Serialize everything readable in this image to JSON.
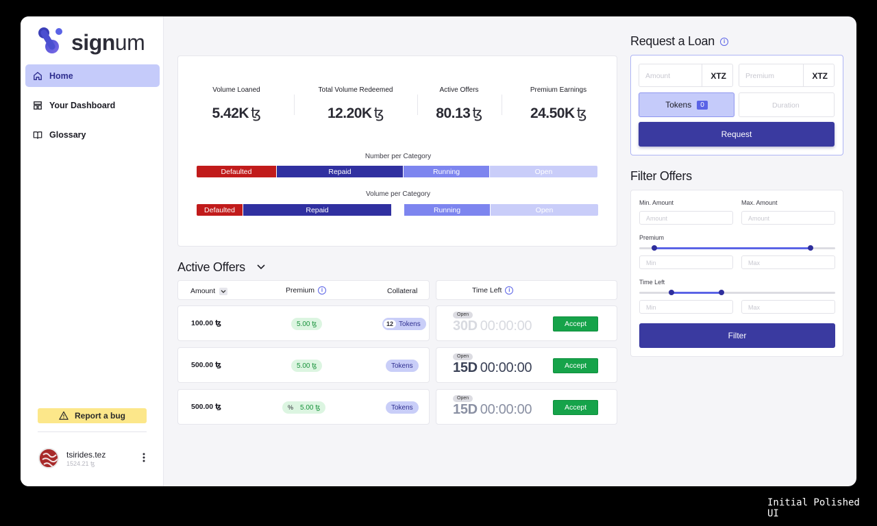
{
  "brand": {
    "name_a": "sign",
    "name_b": "um"
  },
  "sidebar": {
    "items": [
      {
        "label": "Home",
        "active": true
      },
      {
        "label": "Your Dashboard"
      },
      {
        "label": "Glossary"
      }
    ],
    "report_bug": "Report a bug",
    "user": {
      "name": "tsirides.tez",
      "balance": "1524.21 ꜩ"
    }
  },
  "stats": [
    {
      "label": "Volume Loaned",
      "value": "5.42K",
      "unit": "ꜩ"
    },
    {
      "label": "Total Volume Redeemed",
      "value": "12.20K",
      "unit": "ꜩ"
    },
    {
      "label": "Active Offers",
      "value": "80.13",
      "unit": "ꜩ"
    },
    {
      "label": "Premium Earnings",
      "value": "24.50K",
      "unit": "ꜩ"
    }
  ],
  "number_per_category": {
    "title": "Number per Category",
    "segments": [
      {
        "label": "Defaulted",
        "share": 0.2,
        "color": "#c11b1b"
      },
      {
        "label": "Repaid",
        "share": 0.315,
        "color": "#3030a0"
      },
      {
        "label": "Running",
        "share": 0.215,
        "color": "#7d85ef"
      },
      {
        "label": "Open",
        "share": 0.27,
        "color": "#c9cdf9"
      }
    ]
  },
  "volume_per_category": {
    "title": "Volume per Category",
    "segments": [
      {
        "label": "Defaulted",
        "share": 0.116,
        "color": "#c11b1b"
      },
      {
        "label": "Repaid",
        "share": 0.371,
        "color": "#3030a0"
      },
      {
        "label": "Running",
        "share": 0.215,
        "color": "#7d85ef"
      },
      {
        "label": "Open",
        "share": 0.27,
        "color": "#c9cdf9"
      }
    ]
  },
  "active_offers": {
    "title": "Active Offers",
    "headers": {
      "amount": "Amount",
      "premium": "Premium",
      "collateral": "Collateral",
      "time_left": "Time Left"
    },
    "rows": [
      {
        "amount": "100.00 ꜩ",
        "premium": "5.00 ꜩ",
        "collateral": "Tokens",
        "collateral_count": "12",
        "status": "Open",
        "days": "30D",
        "time": "00:00:00",
        "faded": true,
        "action": "Accept"
      },
      {
        "amount": "500.00 ꜩ",
        "premium": "5.00 ꜩ",
        "collateral": "Tokens",
        "status": "Open",
        "days": "15D",
        "time": "00:00:00",
        "faded": false,
        "action": "Accept"
      },
      {
        "amount": "500.00 ꜩ",
        "premium": "5.00 ꜩ",
        "premium_prefix": "%",
        "collateral": "Tokens",
        "status": "Open",
        "days": "15D",
        "time": "00:00:00",
        "faded": false,
        "muted": true,
        "action": "Accept"
      }
    ]
  },
  "request_loan": {
    "title": "Request a Loan",
    "amount_placeholder": "Amount",
    "premium_placeholder": "Premium",
    "unit": "XTZ",
    "tokens_label": "Tokens",
    "tokens_count": "0",
    "duration_placeholder": "Duration",
    "request_button": "Request"
  },
  "filter": {
    "title": "Filter Offers",
    "min_amount_label": "Min. Amount",
    "max_amount_label": "Max. Amount",
    "amount_placeholder": "Amount",
    "premium_label": "Premium",
    "time_left_label": "Time Left",
    "min_placeholder": "Min",
    "max_placeholder": "Max",
    "filter_button": "Filter"
  },
  "caption": "Initial Polished UI"
}
